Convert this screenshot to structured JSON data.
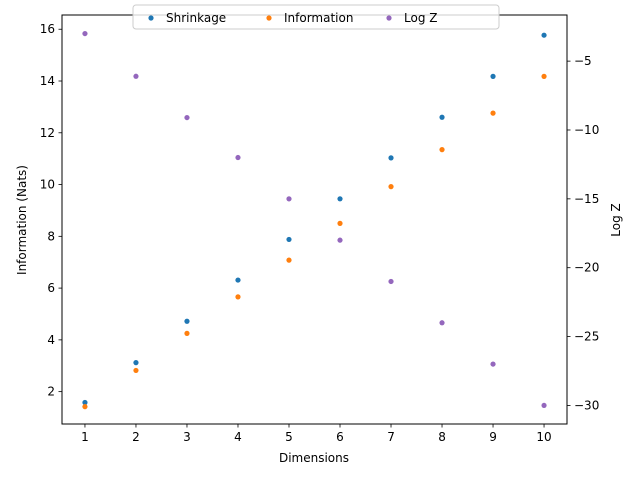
{
  "chart_data": {
    "type": "scatter",
    "xlabel": "Dimensions",
    "ylabel": "Information (Nats)",
    "y2label": "Log Z",
    "x": [
      1,
      2,
      3,
      4,
      5,
      6,
      7,
      8,
      9,
      10
    ],
    "xticks": [
      "1",
      "2",
      "3",
      "4",
      "5",
      "6",
      "7",
      "8",
      "9",
      "10"
    ],
    "xlim": [
      0.55,
      10.45
    ],
    "ylim": [
      0.75,
      16.55
    ],
    "yticks": [
      2,
      4,
      6,
      8,
      10,
      12,
      14,
      16
    ],
    "y2lim": [
      -31.35,
      -1.65
    ],
    "y2ticks": [
      -30,
      -25,
      -20,
      -15,
      -10,
      -5
    ],
    "y2ticklabels": [
      "−30",
      "−25",
      "−20",
      "−15",
      "−10",
      "−5"
    ],
    "legend_position": "top-center",
    "grid": false,
    "series": [
      {
        "name": "Shrinkage",
        "axis": "left",
        "color": "#1f77b4",
        "values": [
          1.58,
          3.12,
          4.72,
          6.31,
          7.88,
          9.45,
          11.03,
          12.6,
          14.18,
          15.77
        ]
      },
      {
        "name": "Information",
        "axis": "left",
        "color": "#ff7f0e",
        "values": [
          1.42,
          2.82,
          4.25,
          5.66,
          7.08,
          8.5,
          9.92,
          11.35,
          12.76,
          14.18
        ]
      },
      {
        "name": "Log Z",
        "axis": "right",
        "color": "#9467bd",
        "values": [
          -3.0,
          -6.1,
          -9.1,
          -12.0,
          -15.0,
          -18.0,
          -21.0,
          -24.0,
          -27.0,
          -30.0
        ]
      }
    ]
  }
}
